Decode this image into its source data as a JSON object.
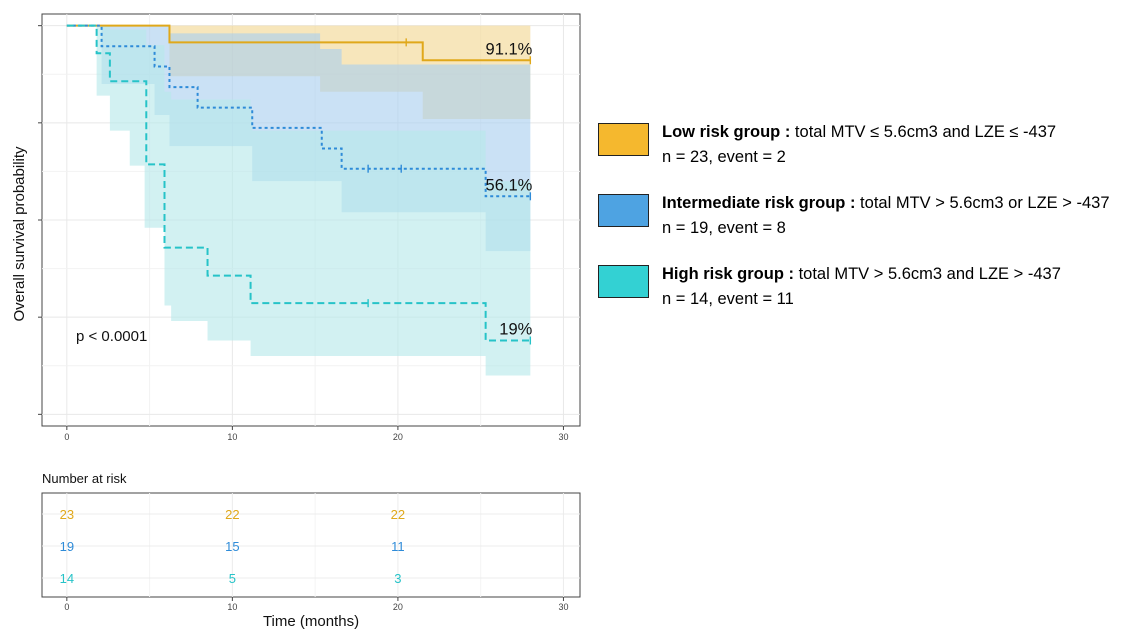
{
  "chart_data": {
    "type": "line",
    "title": "",
    "xlabel": "Time (months)",
    "ylabel": "Overall survival probability",
    "xlim": [
      -1.5,
      31
    ],
    "ylim": [
      -0.03,
      1.03
    ],
    "x_ticks": [
      0,
      10,
      20,
      30
    ],
    "y_ticks": [
      0,
      0.25,
      0.5,
      0.75,
      1.0
    ],
    "grid": true,
    "legend_position": "right",
    "p_value_label": "p < 0.0001",
    "series": [
      {
        "name": "Low risk group",
        "color": "#E0A81A",
        "fill": "#F2D692",
        "line_style": "solid",
        "end_label": "91.1%",
        "steps": [
          [
            0,
            1.0
          ],
          [
            6.2,
            0.957
          ],
          [
            21.5,
            0.911
          ],
          [
            28,
            0.911
          ]
        ],
        "censor_times": [
          20.5,
          28
        ],
        "ci_lower": [
          [
            0,
            1.0
          ],
          [
            6.2,
            0.87
          ],
          [
            15.3,
            0.83
          ],
          [
            21.5,
            0.76
          ],
          [
            25.7,
            0.76
          ],
          [
            28,
            0.76
          ]
        ],
        "ci_upper": [
          [
            0,
            1.0
          ],
          [
            28,
            1.0
          ]
        ]
      },
      {
        "name": "Intermediate risk group",
        "color": "#2E8BD8",
        "fill": "#A9CEEF",
        "line_style": "dotted",
        "end_label": "56.1%",
        "steps": [
          [
            0,
            1.0
          ],
          [
            2.1,
            0.947
          ],
          [
            5.3,
            0.895
          ],
          [
            6.2,
            0.842
          ],
          [
            7.9,
            0.789
          ],
          [
            11.2,
            0.737
          ],
          [
            15.4,
            0.684
          ],
          [
            16.6,
            0.632
          ],
          [
            25.3,
            0.561
          ],
          [
            28,
            0.561
          ]
        ],
        "censor_times": [
          18.2,
          20.2,
          28
        ],
        "ci_lower": [
          [
            0,
            1.0
          ],
          [
            2.1,
            0.85
          ],
          [
            5.3,
            0.77
          ],
          [
            6.2,
            0.69
          ],
          [
            11.2,
            0.6
          ],
          [
            16.6,
            0.52
          ],
          [
            25.3,
            0.42
          ],
          [
            28,
            0.42
          ]
        ],
        "ci_upper": [
          [
            0,
            1.0
          ],
          [
            5.3,
            1.0
          ],
          [
            6.2,
            0.98
          ],
          [
            15.3,
            0.94
          ],
          [
            16.6,
            0.9
          ],
          [
            28,
            0.9
          ]
        ]
      },
      {
        "name": "High risk group",
        "color": "#26C3C8",
        "fill": "#B6E8EA",
        "line_style": "dashed",
        "end_label": "19%",
        "steps": [
          [
            0,
            1.0
          ],
          [
            1.8,
            0.929
          ],
          [
            2.6,
            0.857
          ],
          [
            4.8,
            0.643
          ],
          [
            5.9,
            0.429
          ],
          [
            8.5,
            0.357
          ],
          [
            11.1,
            0.286
          ],
          [
            25.3,
            0.19
          ],
          [
            28,
            0.19
          ]
        ],
        "censor_times": [
          18.2,
          28
        ],
        "ci_lower": [
          [
            0,
            1.0
          ],
          [
            1.8,
            0.82
          ],
          [
            2.6,
            0.73
          ],
          [
            3.8,
            0.64
          ],
          [
            4.7,
            0.48
          ],
          [
            5.9,
            0.28
          ],
          [
            6.3,
            0.24
          ],
          [
            8.5,
            0.19
          ],
          [
            11.1,
            0.15
          ],
          [
            25.3,
            0.1
          ],
          [
            28,
            0.1
          ]
        ],
        "ci_upper": [
          [
            0,
            1.0
          ],
          [
            1.8,
            1.0
          ],
          [
            2.6,
            0.99
          ],
          [
            4.8,
            0.95
          ],
          [
            5.9,
            0.83
          ],
          [
            6.3,
            0.81
          ],
          [
            8.5,
            0.81
          ],
          [
            11.1,
            0.78
          ],
          [
            11.2,
            0.73
          ],
          [
            16.6,
            0.73
          ],
          [
            25.3,
            0.6
          ],
          [
            28,
            0.6
          ]
        ]
      }
    ],
    "risk_table": {
      "title": "Number at risk",
      "times": [
        0,
        10,
        20
      ],
      "x_ticks": [
        0,
        10,
        20,
        30
      ],
      "rows": [
        {
          "group": "Low risk group",
          "color": "#E0A81A",
          "values": [
            "23",
            "22",
            "22"
          ]
        },
        {
          "group": "Intermediate risk group",
          "color": "#2E8BD8",
          "values": [
            "19",
            "15",
            "11"
          ]
        },
        {
          "group": "High risk group",
          "color": "#26C3C8",
          "values": [
            "14",
            "5",
            "3"
          ]
        }
      ]
    }
  },
  "legend": {
    "items": [
      {
        "swatch_color": "#F5B82E",
        "bold": "Low risk group :",
        "rest": " total MTV ≤ 5.6cm3 and LZE ≤ -437",
        "line2": "n = 23, event = 2"
      },
      {
        "swatch_color": "#4EA3E2",
        "bold": "Intermediate risk group :",
        "rest": " total MTV > 5.6cm3 or LZE > -437",
        "line2": "n = 19, event = 8"
      },
      {
        "swatch_color": "#33D1D3",
        "bold": "High risk group :",
        "rest": " total MTV > 5.6cm3 and LZE > -437",
        "line2": "n = 14, event = 11"
      }
    ]
  }
}
